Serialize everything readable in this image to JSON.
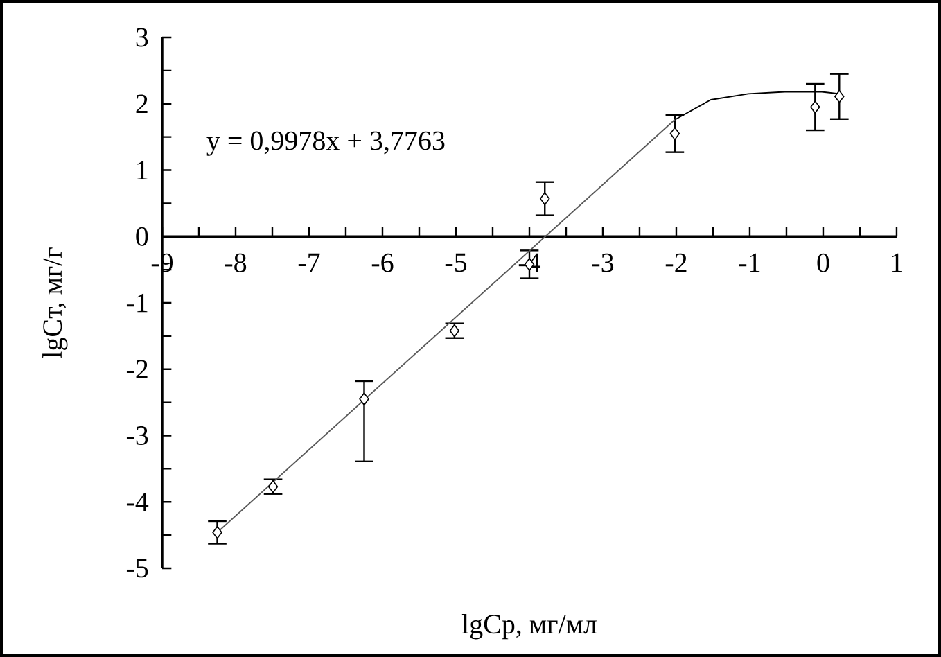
{
  "chart_data": {
    "type": "scatter",
    "xlabel": "lgCр, мг/мл",
    "ylabel": "lgCт, мг/г",
    "annotations": [
      "y = 0,9978x + 3,7763"
    ],
    "xlim": [
      -9,
      1
    ],
    "ylim": [
      -5,
      3
    ],
    "xticks": [
      -9,
      -8,
      -7,
      -6,
      -5,
      -4,
      -3,
      -2,
      -1,
      0,
      1
    ],
    "yticks": [
      -5,
      -4,
      -3,
      -2,
      -1,
      0,
      1,
      2,
      3
    ],
    "grid": false,
    "series": [
      {
        "color": "#000000",
        "marker": "diamond",
        "x": [
          -8.25,
          -7.49,
          -6.25,
          -5.02,
          -4.0,
          -3.79,
          -2.02,
          -0.11,
          0.22
        ],
        "values": [
          -4.46,
          -3.77,
          -2.45,
          -1.42,
          -0.42,
          0.57,
          1.55,
          1.95,
          2.11
        ],
        "errors": [
          0.17,
          0.11,
          [
            -3.39,
            -2.18
          ],
          0.11,
          0.21,
          0.25,
          0.28,
          0.35,
          0.34
        ]
      },
      {
        "type": "line",
        "color": "#595959",
        "marker": "none",
        "x": [
          -8.25,
          -2.0
        ],
        "values": [
          -4.46,
          1.78
        ]
      },
      {
        "type": "line",
        "color": "#000000",
        "marker": "none",
        "x": [
          -2.02,
          -1.53,
          -1.02,
          -0.52,
          -0.02,
          0.22
        ],
        "values": [
          1.76,
          2.06,
          2.15,
          2.18,
          2.18,
          2.15
        ]
      }
    ]
  }
}
